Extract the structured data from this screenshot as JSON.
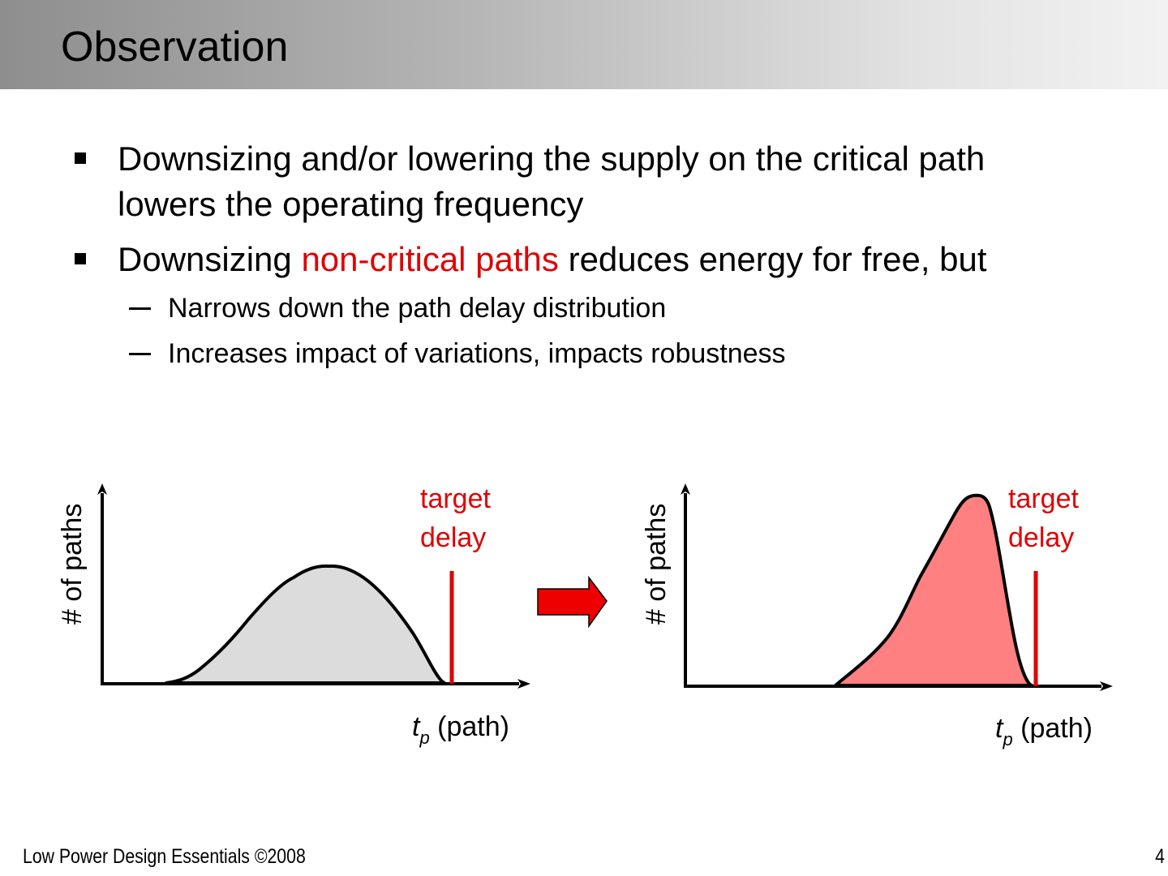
{
  "slide": {
    "title": "Observation",
    "bullets": [
      {
        "level": 1,
        "lines": [
          "Downsizing and/or lowering the supply on the critical path",
          "lowers the operating frequency"
        ]
      },
      {
        "level": 1,
        "before": "Downsizing ",
        "highlight": "non-critical paths",
        "after": " reduces energy for free, but"
      },
      {
        "level": 2,
        "text": "Narrows down the path delay distribution"
      },
      {
        "level": 2,
        "text": "Increases impact of variations, impacts robustness"
      }
    ]
  },
  "diagrams": {
    "left": {
      "ylabel": "# of paths",
      "xlabel_var": "t",
      "xlabel_sub": "p",
      "xlabel_rest": " (path)",
      "target_line1": "target",
      "target_line2": "delay"
    },
    "right": {
      "ylabel": "# of paths",
      "xlabel_var": "t",
      "xlabel_sub": "p",
      "xlabel_rest": " (path)",
      "target_line1": "target",
      "target_line2": "delay"
    }
  },
  "colors": {
    "highlight": "#e00000",
    "left_fill": "#dcdcdc",
    "right_fill": "#ff8080",
    "arrow_fill": "#ee0000",
    "target_line": "#e00000"
  },
  "footer": {
    "left": "Low Power Design Essentials ©2008",
    "page": "4"
  }
}
